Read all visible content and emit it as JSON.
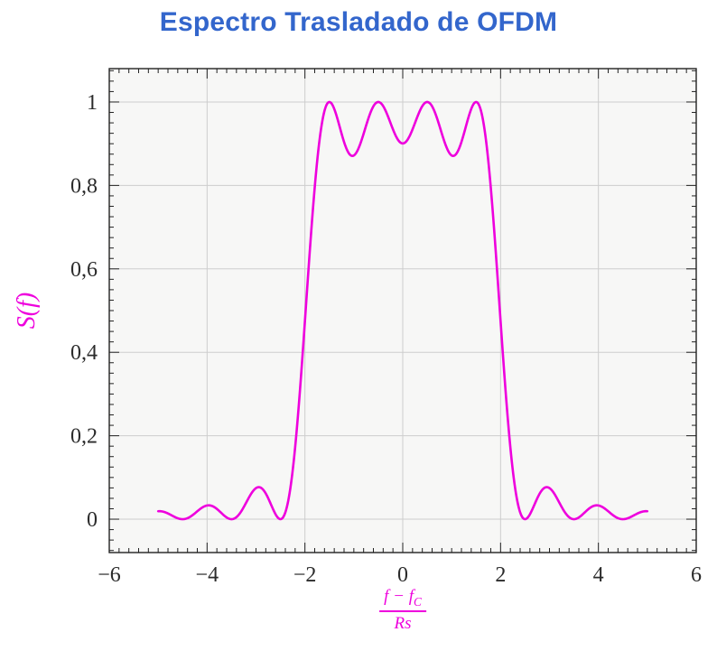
{
  "title": {
    "text": "Espectro Trasladado de OFDM",
    "color": "#3366cc"
  },
  "chart_data": {
    "type": "line",
    "title": "Espectro Trasladado de OFDM",
    "xlabel": "(f − f_C) / Rs",
    "xlabel_parts": {
      "numerator_main": "f − f",
      "numerator_sub": "C",
      "denominator": "Rs"
    },
    "ylabel": "S(f)",
    "xlim": [
      -6,
      6
    ],
    "ylim": [
      -0.08,
      1.08
    ],
    "grid": true,
    "background": "#f7f7f6",
    "grid_color": "#cdcdcd",
    "axis_color": "#222222",
    "tick_label_color": "#2b2b2b",
    "label_color": "#ee00dd",
    "x_ticks": {
      "values": [
        -6,
        -4,
        -2,
        0,
        2,
        4,
        6
      ],
      "labels": [
        "−6",
        "−4",
        "−2",
        "0",
        "2",
        "4",
        "6"
      ]
    },
    "y_ticks": {
      "values": [
        0,
        0.2,
        0.4,
        0.6,
        0.8,
        1
      ],
      "labels": [
        "0",
        "0,2",
        "0,4",
        "0,6",
        "0,8",
        "1"
      ]
    },
    "x_minor_step": 0.2,
    "y_minor_step": 0.025,
    "legend": "none",
    "series": [
      {
        "name": "S(f)",
        "color": "#ee00dd",
        "model": "sum_of_squared_sinc",
        "subcarriers": [
          -1.5,
          -0.5,
          0.5,
          1.5
        ],
        "x_range": [
          -5,
          5
        ],
        "key_points": [
          [
            -5,
            0.019
          ],
          [
            -4.5,
            0
          ],
          [
            -4,
            0.0328
          ],
          [
            -3.5,
            0
          ],
          [
            -3,
            0.0745
          ],
          [
            -2.5,
            0
          ],
          [
            -2,
            0.4748
          ],
          [
            -1.5,
            1
          ],
          [
            -1,
            0.8718
          ],
          [
            -0.5,
            1
          ],
          [
            0,
            0.9006
          ],
          [
            0.5,
            1
          ],
          [
            1,
            0.8718
          ],
          [
            1.5,
            1
          ],
          [
            2,
            0.4748
          ],
          [
            2.5,
            0
          ],
          [
            3,
            0.0745
          ],
          [
            3.5,
            0
          ],
          [
            4,
            0.0328
          ],
          [
            4.5,
            0
          ],
          [
            5,
            0.019
          ]
        ]
      }
    ]
  }
}
